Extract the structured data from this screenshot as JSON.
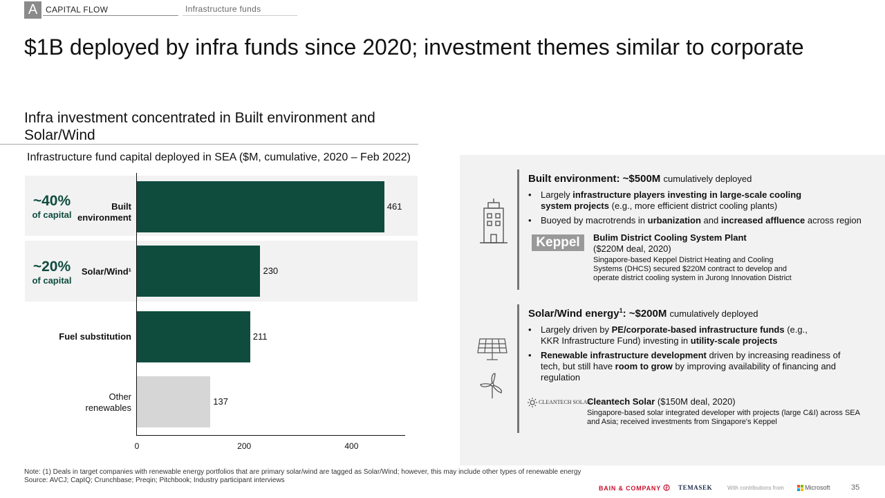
{
  "header": {
    "letter": "A",
    "section": "CAPITAL FLOW",
    "subsection": "Infrastructure funds"
  },
  "title": "$1B deployed by infra funds since 2020; investment themes similar to corporate",
  "left": {
    "heading": "Infra investment concentrated in Built environment and Solar/Wind",
    "chart_title": "Infrastructure fund capital deployed in SEA ($M, cumulative, 2020 – Feb 2022)",
    "highlights": [
      {
        "pct": "~40%",
        "sub": "of capital"
      },
      {
        "pct": "~20%",
        "sub": "of capital"
      }
    ]
  },
  "chart_data": {
    "type": "bar",
    "orientation": "horizontal",
    "title": "Infrastructure fund capital deployed in SEA ($M, cumulative, 2020 – Feb 2022)",
    "categories": [
      "Built environment",
      "Solar/Wind¹",
      "Fuel substitution",
      "Other renewables"
    ],
    "values": [
      461,
      230,
      211,
      137
    ],
    "colors": [
      "#0f4c3e",
      "#0f4c3e",
      "#0f4c3e",
      "#d6d6d6"
    ],
    "xticks": [
      0,
      200,
      400
    ],
    "xlim": [
      0,
      500
    ],
    "xlabel": "",
    "ylabel": "",
    "grid": false
  },
  "right": {
    "built": {
      "title_bold": "Built environment: ~$500M",
      "title_rest": "cumulatively deployed",
      "bullet1_a": "Largely ",
      "bullet1_b": "infrastructure players investing in large-scale cooling system projects",
      "bullet1_c": " (e.g., more efficient district cooling plants)",
      "bullet2_a": "Buoyed by macrotrends in ",
      "bullet2_b": "urbanization",
      "bullet2_c": " and ",
      "bullet2_d": "increased affluence",
      "bullet2_e": " across region",
      "logo": "Keppel",
      "deal_name": "Bulim District Cooling System Plant",
      "deal_amount": "($220M deal, 2020)",
      "deal_desc": "Singapore-based Keppel District Heating and Cooling Systems (DHCS) secured $220M contract to develop and operate district cooling system in Jurong Innovation District"
    },
    "solar": {
      "title_bold_a": "Solar/Wind energy",
      "title_sup": "1",
      "title_bold_b": ": ~$200M",
      "title_rest": "cumulatively deployed",
      "bullet1_a": "Largely driven by ",
      "bullet1_b": "PE/corporate-based infrastructure funds",
      "bullet1_c": " (e.g., KKR Infrastructure Fund) investing in ",
      "bullet1_d": "utility-scale projects",
      "bullet2_a": "Renewable infrastructure development",
      "bullet2_b": " driven by increasing readiness of tech, but still have ",
      "bullet2_c": "room to grow",
      "bullet2_d": " by improving availability of financing and regulation",
      "logo": "CLEANTECH SOLAR",
      "deal_name": "Cleantech Solar",
      "deal_amount": "($150M deal, 2020)",
      "deal_desc": "Singapore-based solar integrated developer with projects (large C&I) across SEA and Asia; received investments from Singapore's Keppel"
    }
  },
  "footer": {
    "note": "Note: (1) Deals in target companies with renewable energy portfolios that are primary solar/wind are tagged as Solar/Wind; however, this may include other types of renewable energy",
    "source": "Source: AVCJ; CapIQ; Crunchbase; Preqin; Pitchbook; Industry participant interviews",
    "bain": "BAIN & COMPANY",
    "temasek": "TEMASEK",
    "contrib": "With contributions from",
    "microsoft": "Microsoft",
    "page": "35"
  },
  "icons": [
    "building-icon",
    "solar-panel-icon",
    "wind-turbine-icon",
    "bain-logo-icon",
    "microsoft-logo-icon",
    "cleantech-sun-icon"
  ]
}
